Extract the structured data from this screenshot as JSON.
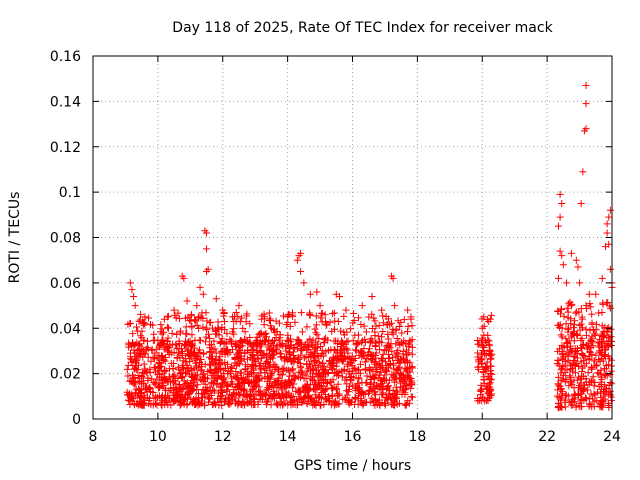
{
  "chart_data": {
    "type": "scatter",
    "title": "Day 118 of 2025, Rate Of TEC Index for receiver mack",
    "xlabel": "GPS time / hours",
    "ylabel": "ROTI / TECUs",
    "xlim": [
      8,
      24
    ],
    "ylim": [
      0,
      0.16
    ],
    "xticks": [
      8,
      10,
      12,
      14,
      16,
      18,
      20,
      22,
      24
    ],
    "xtick_labels": [
      "8",
      "10",
      "12",
      "14",
      "16",
      "18",
      "20",
      "22",
      "24"
    ],
    "yticks": [
      0,
      0.02,
      0.04,
      0.06,
      0.08,
      0.1,
      0.12,
      0.14,
      0.16
    ],
    "ytick_labels": [
      "0",
      "0.02",
      "0.04",
      "0.06",
      "0.08",
      "0.1",
      "0.12",
      "0.14",
      "0.16"
    ],
    "grid": true,
    "marker": "+",
    "color": "#ff0000",
    "dense_segments": [
      {
        "start": 9.05,
        "end": 17.85,
        "typical_min": 0.006,
        "typical_max": 0.035
      },
      {
        "start": 19.85,
        "end": 20.3,
        "typical_min": 0.008,
        "typical_max": 0.035
      },
      {
        "start": 22.3,
        "end": 24.0,
        "typical_min": 0.005,
        "typical_max": 0.04
      }
    ],
    "notable_points": [
      [
        9.15,
        0.06
      ],
      [
        9.2,
        0.057
      ],
      [
        9.25,
        0.054
      ],
      [
        9.3,
        0.05
      ],
      [
        9.6,
        0.045
      ],
      [
        10.3,
        0.045
      ],
      [
        10.5,
        0.048
      ],
      [
        10.75,
        0.063
      ],
      [
        10.8,
        0.062
      ],
      [
        10.9,
        0.052
      ],
      [
        11.2,
        0.05
      ],
      [
        11.3,
        0.058
      ],
      [
        11.4,
        0.055
      ],
      [
        11.45,
        0.083
      ],
      [
        11.5,
        0.082
      ],
      [
        11.5,
        0.075
      ],
      [
        11.55,
        0.066
      ],
      [
        11.5,
        0.065
      ],
      [
        11.8,
        0.053
      ],
      [
        12.0,
        0.048
      ],
      [
        12.3,
        0.045
      ],
      [
        12.5,
        0.05
      ],
      [
        13.2,
        0.044
      ],
      [
        13.5,
        0.04
      ],
      [
        14.0,
        0.045
      ],
      [
        14.3,
        0.07
      ],
      [
        14.35,
        0.072
      ],
      [
        14.4,
        0.073
      ],
      [
        14.4,
        0.065
      ],
      [
        14.5,
        0.06
      ],
      [
        14.7,
        0.055
      ],
      [
        14.9,
        0.056
      ],
      [
        15.0,
        0.05
      ],
      [
        15.5,
        0.055
      ],
      [
        15.6,
        0.054
      ],
      [
        15.8,
        0.048
      ],
      [
        16.3,
        0.05
      ],
      [
        16.6,
        0.054
      ],
      [
        16.9,
        0.048
      ],
      [
        17.2,
        0.063
      ],
      [
        17.25,
        0.062
      ],
      [
        17.3,
        0.05
      ],
      [
        17.7,
        0.048
      ],
      [
        17.8,
        0.045
      ],
      [
        20.0,
        0.04
      ],
      [
        20.2,
        0.043
      ],
      [
        20.25,
        0.044
      ],
      [
        22.4,
        0.099
      ],
      [
        22.45,
        0.095
      ],
      [
        22.4,
        0.089
      ],
      [
        22.35,
        0.085
      ],
      [
        22.4,
        0.074
      ],
      [
        22.45,
        0.072
      ],
      [
        22.5,
        0.068
      ],
      [
        22.35,
        0.062
      ],
      [
        22.6,
        0.06
      ],
      [
        22.75,
        0.073
      ],
      [
        22.9,
        0.07
      ],
      [
        22.95,
        0.067
      ],
      [
        23.0,
        0.06
      ],
      [
        23.05,
        0.095
      ],
      [
        23.1,
        0.109
      ],
      [
        23.15,
        0.127
      ],
      [
        23.2,
        0.128
      ],
      [
        23.2,
        0.139
      ],
      [
        23.2,
        0.147
      ],
      [
        23.3,
        0.055
      ],
      [
        23.5,
        0.055
      ],
      [
        23.7,
        0.062
      ],
      [
        23.8,
        0.076
      ],
      [
        23.85,
        0.082
      ],
      [
        23.85,
        0.086
      ],
      [
        23.9,
        0.089
      ],
      [
        23.95,
        0.092
      ],
      [
        23.9,
        0.077
      ],
      [
        23.95,
        0.066
      ],
      [
        24.0,
        0.058
      ],
      [
        24.0,
        0.06
      ]
    ]
  }
}
